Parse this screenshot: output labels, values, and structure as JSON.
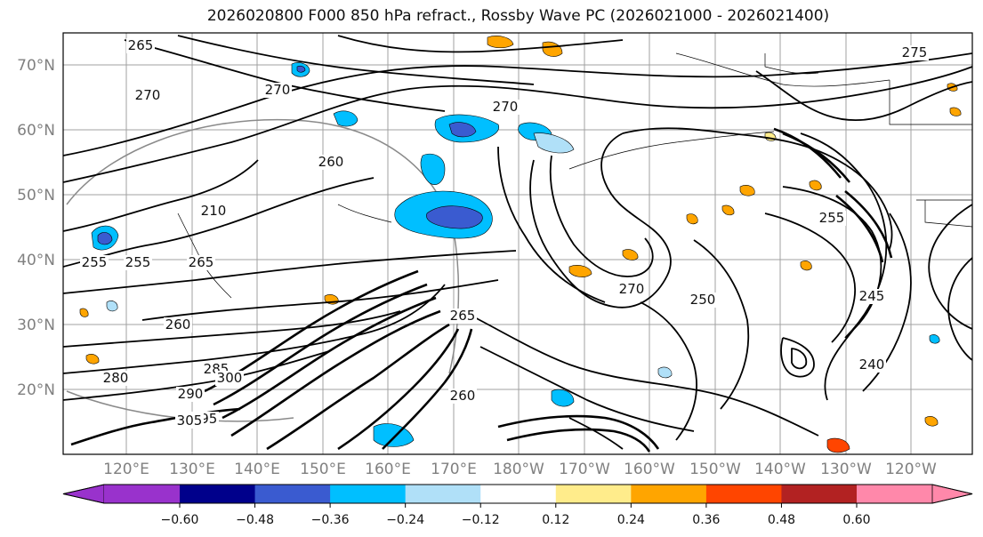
{
  "title": "2026020800 F000 850 hPa refract., Rossby Wave PC (2026021000 - 2026021400)",
  "map": {
    "lat_labels": [
      "70°N",
      "60°N",
      "50°N",
      "40°N",
      "30°N",
      "20°N"
    ],
    "lon_labels": [
      "120°E",
      "130°E",
      "140°E",
      "150°E",
      "160°E",
      "170°E",
      "180°W",
      "170°W",
      "160°W",
      "150°W",
      "140°W",
      "130°W",
      "120°W"
    ],
    "contour_labels": [
      "265",
      "270",
      "270",
      "255",
      "260",
      "210",
      "265",
      "255",
      "260",
      "260",
      "265",
      "270",
      "280",
      "285",
      "290",
      "295",
      "300",
      "305",
      "275",
      "270",
      "255",
      "245",
      "240",
      "250"
    ],
    "line_color": "#000000",
    "grid_color": "#999999"
  },
  "colorbar": {
    "colors": [
      "#9932cc",
      "#00008b",
      "#3a5bd0",
      "#00bfff",
      "#b0e0f8",
      "#ffffff",
      "#ffec8b",
      "#ffa500",
      "#ff4500",
      "#b22222",
      "#ff88aa"
    ],
    "tick_labels": [
      "−0.60",
      "−0.48",
      "−0.36",
      "−0.24",
      "−0.12",
      "0.12",
      "0.24",
      "0.36",
      "0.48",
      "0.60"
    ],
    "extend": "both"
  }
}
